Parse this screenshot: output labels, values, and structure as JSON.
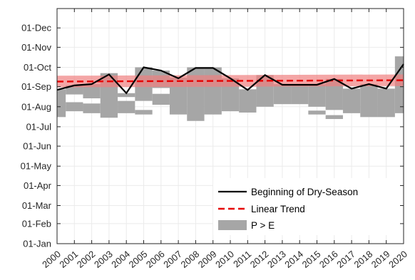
{
  "chart_data": {
    "type": "line",
    "x": [
      2000,
      2001,
      2002,
      2003,
      2004,
      2005,
      2006,
      2007,
      2008,
      2009,
      2010,
      2011,
      2012,
      2013,
      2014,
      2015,
      2016,
      2017,
      2018,
      2019,
      2020
    ],
    "x_tick_labels": [
      "2000",
      "2001",
      "2002",
      "2003",
      "2004",
      "2005",
      "2006",
      "2007",
      "2008",
      "2009",
      "2010",
      "2011",
      "2012",
      "2013",
      "2014",
      "2015",
      "2016",
      "2017",
      "2018",
      "2019",
      "2020"
    ],
    "xlim": [
      2000,
      2020
    ],
    "y_tick_labels": [
      "01-Jan",
      "01-Feb",
      "01-Mar",
      "01-Apr",
      "01-May",
      "01-Jun",
      "01-Jul",
      "01-Aug",
      "01-Sep",
      "01-Oct",
      "01-Nov",
      "01-Dec"
    ],
    "y_tick_dates": [
      "01-Jan",
      "01-Feb",
      "01-Mar",
      "01-Apr",
      "01-May",
      "01-Jun",
      "01-Jul",
      "01-Aug",
      "01-Sep",
      "01-Oct",
      "01-Nov",
      "01-Dec"
    ],
    "ylim": [
      "01-Jan",
      "31-Dec"
    ],
    "grid": true,
    "legend": "bottom-right",
    "series": [
      {
        "name": "Beginning of Dry-Season",
        "color": "#000000",
        "style": "solid",
        "values": [
          "27-Aug",
          "03-Sep",
          "05-Sep",
          "20-Sep",
          "22-Aug",
          "01-Oct",
          "26-Sep",
          "14-Sep",
          "30-Sep",
          "30-Sep",
          "14-Sep",
          "27-Aug",
          "19-Sep",
          "04-Sep",
          "04-Sep",
          "04-Sep",
          "13-Sep",
          "29-Aug",
          "05-Sep",
          "29-Aug",
          "06-Oct"
        ]
      },
      {
        "name": "Linear Trend",
        "color": "#e60000",
        "style": "dashed",
        "values": [
          "09-Sep",
          "11-Sep"
        ],
        "x": [
          2000,
          2020
        ],
        "confidence_band": {
          "color": "#f08080",
          "lower": [
            "31-Aug",
            "02-Sep"
          ],
          "upper": [
            "18-Sep",
            "20-Sep"
          ]
        }
      }
    ],
    "pe_area": {
      "name": "P > E",
      "color": "#a6a6a6",
      "years": [
        {
          "year": 2000,
          "ranges": [
            [
              "16-Jul",
              "28-Aug"
            ]
          ]
        },
        {
          "year": 2001,
          "ranges": [
            [
              "25-Jul",
              "08-Aug"
            ],
            [
              "20-Aug",
              "03-Sep"
            ]
          ]
        },
        {
          "year": 2002,
          "ranges": [
            [
              "22-Jul",
              "06-Aug"
            ],
            [
              "14-Aug",
              "05-Sep"
            ]
          ]
        },
        {
          "year": 2003,
          "ranges": [
            [
              "15-Jul",
              "22-Sep"
            ]
          ]
        },
        {
          "year": 2004,
          "ranges": [
            [
              "22-Jul",
              "10-Aug"
            ],
            [
              "16-Aug",
              "22-Aug"
            ]
          ]
        },
        {
          "year": 2005,
          "ranges": [
            [
              "20-Jul",
              "27-Jul"
            ],
            [
              "10-Aug",
              "01-Oct"
            ]
          ]
        },
        {
          "year": 2006,
          "ranges": [
            [
              "04-Aug",
              "21-Aug"
            ],
            [
              "30-Aug",
              "26-Sep"
            ]
          ]
        },
        {
          "year": 2007,
          "ranges": [
            [
              "20-Jul",
              "15-Sep"
            ]
          ]
        },
        {
          "year": 2008,
          "ranges": [
            [
              "10-Jul",
              "01-Oct"
            ]
          ]
        },
        {
          "year": 2009,
          "ranges": [
            [
              "20-Jul",
              "01-Oct"
            ]
          ]
        },
        {
          "year": 2010,
          "ranges": [
            [
              "25-Jul",
              "14-Sep"
            ]
          ]
        },
        {
          "year": 2011,
          "ranges": [
            [
              "23-Jul",
              "28-Aug"
            ]
          ]
        },
        {
          "year": 2012,
          "ranges": [
            [
              "01-Aug",
              "19-Sep"
            ]
          ]
        },
        {
          "year": 2013,
          "ranges": [
            [
              "05-Aug",
              "05-Sep"
            ]
          ]
        },
        {
          "year": 2014,
          "ranges": [
            [
              "05-Aug",
              "05-Sep"
            ]
          ]
        },
        {
          "year": 2015,
          "ranges": [
            [
              "20-Jul",
              "26-Jul"
            ],
            [
              "01-Aug",
              "05-Sep"
            ]
          ]
        },
        {
          "year": 2016,
          "ranges": [
            [
              "13-Jul",
              "19-Jul"
            ],
            [
              "27-Jul",
              "13-Sep"
            ]
          ]
        },
        {
          "year": 2017,
          "ranges": [
            [
              "22-Jul",
              "29-Aug"
            ]
          ]
        },
        {
          "year": 2018,
          "ranges": [
            [
              "16-Jul",
              "05-Sep"
            ]
          ]
        },
        {
          "year": 2019,
          "ranges": [
            [
              "16-Jul",
              "29-Aug"
            ]
          ]
        },
        {
          "year": 2020,
          "ranges": [
            [
              "22-Jul",
              "18-Oct"
            ]
          ]
        }
      ]
    },
    "colors": {
      "axis": "#262626",
      "grid": "#ebebeb",
      "pe": "#a6a6a6",
      "band": "#f08080",
      "trend": "#e60000",
      "line": "#000000"
    }
  }
}
